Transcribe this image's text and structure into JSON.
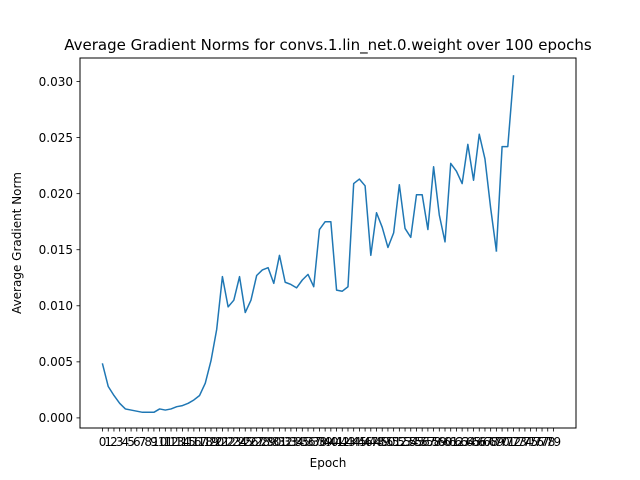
{
  "chart_data": {
    "type": "line",
    "title": "Average Gradient Norms for convs.1.lin_net.0.weight over 100 epochs",
    "xlabel": "Epoch",
    "ylabel": "Average Gradient Norm",
    "ylim": [
      -0.0009,
      0.0321
    ],
    "yticks": [
      0.0,
      0.005,
      0.01,
      0.015,
      0.02,
      0.025,
      0.03
    ],
    "ytick_labels": [
      "0.000",
      "0.005",
      "0.010",
      "0.015",
      "0.020",
      "0.025",
      "0.030"
    ],
    "xlim": [
      -3.95,
      82.95
    ],
    "xtick_labels": [
      "0",
      "1",
      "2",
      "3",
      "4",
      "5",
      "6",
      "7",
      "8",
      "9",
      "10",
      "11",
      "12",
      "13",
      "14",
      "15",
      "16",
      "17",
      "18",
      "19",
      "20",
      "21",
      "22",
      "23",
      "24",
      "25",
      "26",
      "27",
      "28",
      "29",
      "30",
      "31",
      "32",
      "33",
      "34",
      "35",
      "36",
      "37",
      "38",
      "39",
      "40",
      "41",
      "42",
      "43",
      "44",
      "45",
      "46",
      "47",
      "48",
      "49",
      "50",
      "51",
      "52",
      "53",
      "54",
      "55",
      "56",
      "57",
      "58",
      "59",
      "60",
      "61",
      "62",
      "63",
      "64",
      "65",
      "66",
      "67",
      "68",
      "69",
      "70",
      "71",
      "72",
      "73",
      "74",
      "75",
      "76",
      "77",
      "78",
      "79"
    ],
    "grid": false,
    "legend": "none",
    "line_color": "#1f77b4",
    "series": [
      {
        "x": [
          0,
          1,
          2,
          3,
          4,
          5,
          6,
          7,
          8,
          9,
          10,
          11,
          12,
          13,
          14,
          15,
          16,
          17,
          18,
          19,
          20,
          21,
          22,
          23,
          24,
          25,
          26,
          27,
          28,
          29,
          30,
          31,
          32,
          33,
          34,
          35,
          36,
          37,
          38,
          39,
          40,
          41,
          42,
          43,
          44,
          45,
          46,
          47,
          48,
          49,
          50,
          51,
          52,
          53,
          54,
          55,
          56,
          57,
          58,
          59,
          60,
          61,
          62,
          63,
          64,
          65,
          66,
          67,
          68,
          69
        ],
        "values": [
          0.0048,
          0.0028,
          0.002,
          0.0013,
          0.0008,
          0.0007,
          0.0006,
          0.0005,
          0.0005,
          0.0005,
          0.0008,
          0.0007,
          0.0008,
          0.001,
          0.0011,
          0.0013,
          0.0016,
          0.002,
          0.0031,
          0.0051,
          0.0079,
          0.0126,
          0.0099,
          0.0105,
          0.0126,
          0.0094,
          0.0105,
          0.0127,
          0.0132,
          0.0134,
          0.012,
          0.0145,
          0.0121,
          0.0119,
          0.0116,
          0.0123,
          0.0128,
          0.0117,
          0.0168,
          0.0175,
          0.0175,
          0.0114,
          0.0113,
          0.0117,
          0.0209,
          0.0213,
          0.0207,
          0.0145,
          0.0183,
          0.017,
          0.0152,
          0.0165,
          0.0208,
          0.0169,
          0.0161,
          0.0199,
          0.0199,
          0.0168,
          0.0224,
          0.0181,
          0.0157,
          0.0227,
          0.022,
          0.0209,
          0.0244,
          0.0212,
          0.0253,
          0.0231,
          0.0187,
          0.0149
        ]
      },
      {
        "x": [
          69,
          70,
          71,
          72
        ],
        "values": [
          0.0149,
          0.0242,
          0.0242,
          0.0305
        ]
      }
    ]
  }
}
